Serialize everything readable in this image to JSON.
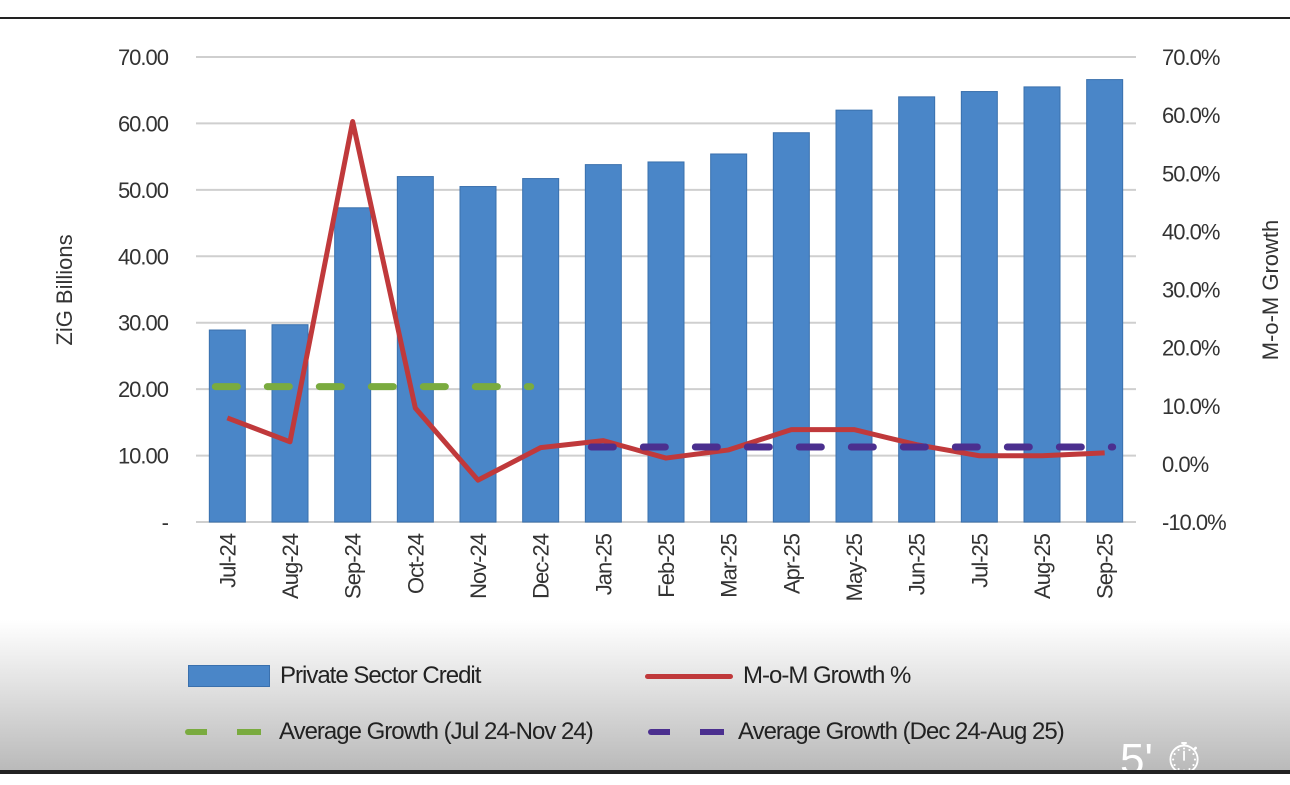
{
  "chart_data": {
    "type": "bar",
    "categories": [
      "Jul-24",
      "Aug-24",
      "Sep-24",
      "Oct-24",
      "Nov-24",
      "Dec-24",
      "Jan-25",
      "Feb-25",
      "Mar-25",
      "Apr-25",
      "May-25",
      "Jun-25",
      "Jul-25",
      "Aug-25",
      "Sep-25"
    ],
    "ylabel": "ZiG Billions",
    "y2label": "M-o-M Growth",
    "ylim": [
      0,
      70
    ],
    "y2lim": [
      -10,
      70
    ],
    "yticks": [
      "-",
      "10.00",
      "20.00",
      "30.00",
      "40.00",
      "50.00",
      "60.00",
      "70.00"
    ],
    "y2ticks": [
      "-10.0%",
      "0.0%",
      "10.0%",
      "20.0%",
      "30.0%",
      "40.0%",
      "50.0%",
      "60.0%",
      "70.0%"
    ],
    "grid": true,
    "legend_placement": "bottom",
    "series": [
      {
        "name": "Private Sector Credit",
        "type": "bar",
        "axis": "left",
        "color": "#4a86c8",
        "values": [
          28.9,
          29.7,
          47.3,
          52.0,
          50.5,
          51.7,
          53.8,
          54.2,
          55.4,
          58.6,
          62.0,
          64.0,
          64.8,
          65.5,
          66.6
        ]
      },
      {
        "name": "M-o-M Growth %",
        "type": "line",
        "axis": "right",
        "color": "#c0393b",
        "values": [
          7.9,
          3.8,
          58.9,
          9.6,
          -2.8,
          2.8,
          4.0,
          1.0,
          2.4,
          5.9,
          5.9,
          3.3,
          1.4,
          1.4,
          1.9
        ]
      },
      {
        "name": "Average Growth (Jul 24-Nov 24)",
        "type": "dashed",
        "axis": "right",
        "color": "#7aab3f",
        "values": [
          13.3,
          13.3,
          13.3,
          13.3,
          13.3,
          13.3,
          null,
          null,
          null,
          null,
          null,
          null,
          null,
          null,
          null
        ]
      },
      {
        "name": "Average Growth (Dec 24-Aug 25)",
        "type": "dashed",
        "axis": "right",
        "color": "#4b2f8f",
        "values": [
          null,
          null,
          null,
          null,
          null,
          null,
          2.9,
          2.9,
          2.9,
          2.9,
          2.9,
          2.9,
          2.9,
          2.9,
          2.9
        ]
      }
    ]
  },
  "overlay": {
    "timer_text": "5'",
    "timer_icon": "stopwatch-icon"
  }
}
